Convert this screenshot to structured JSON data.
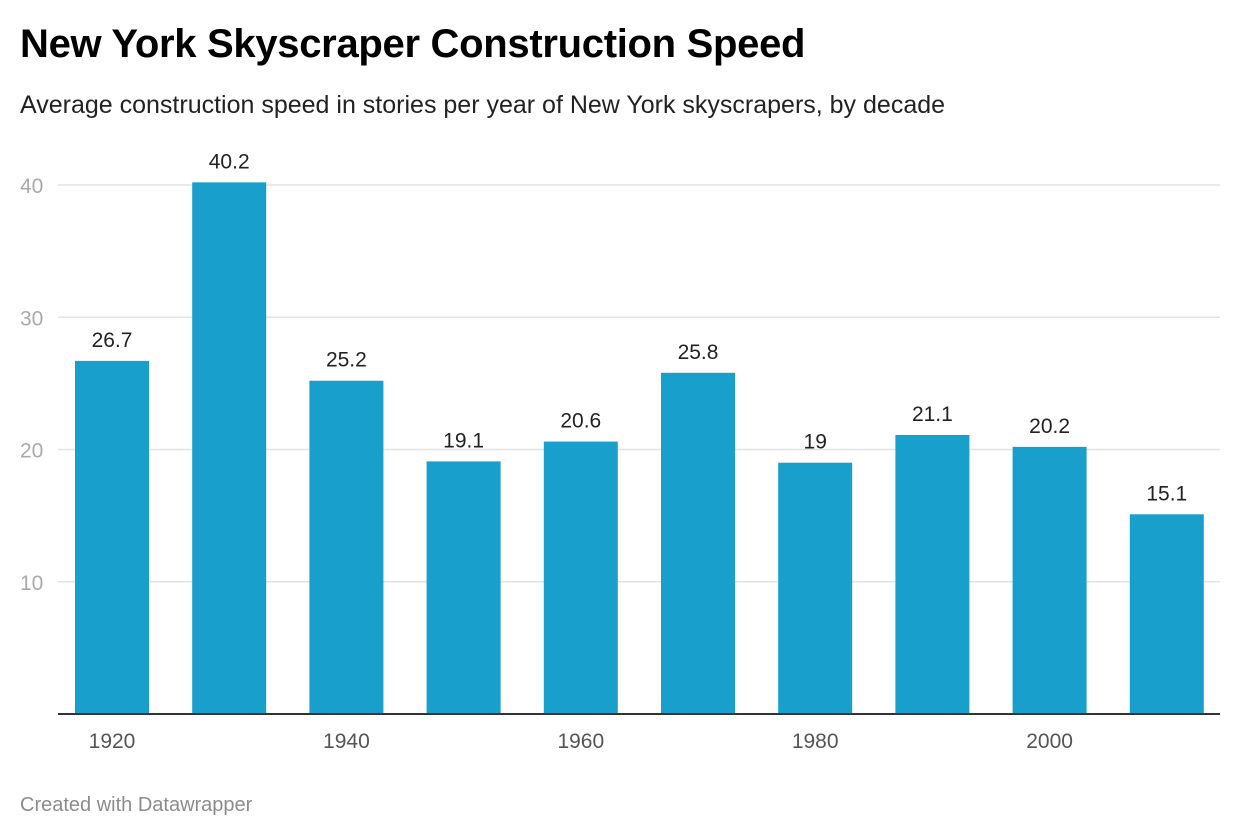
{
  "title": "New York Skyscraper Construction Speed",
  "subtitle": "Average construction speed in stories per year of New York skyscrapers, by decade",
  "footer": "Created with Datawrapper",
  "colors": {
    "bar": "#189fcc",
    "grid": "#e3e3e3",
    "axis": "#333333",
    "tick_label": "#aaaaaa",
    "x_label": "#555555",
    "value_label": "#222222"
  },
  "chart_data": {
    "type": "bar",
    "title": "New York Skyscraper Construction Speed",
    "subtitle": "Average construction speed in stories per year of New York skyscrapers, by decade",
    "xlabel": "",
    "ylabel": "",
    "categories": [
      "1920",
      "1930",
      "1940",
      "1950",
      "1960",
      "1970",
      "1980",
      "1990",
      "2000",
      "2010"
    ],
    "x_tick_labels": [
      "1920",
      "",
      "1940",
      "",
      "1960",
      "",
      "1980",
      "",
      "2000",
      ""
    ],
    "values": [
      26.7,
      40.2,
      25.2,
      19.1,
      20.6,
      25.8,
      19,
      21.1,
      20.2,
      15.1
    ],
    "value_labels": [
      "26.7",
      "40.2",
      "25.2",
      "19.1",
      "20.6",
      "25.8",
      "19",
      "21.1",
      "20.2",
      "15.1"
    ],
    "ylim": [
      0,
      40
    ],
    "yticks": [
      10,
      20,
      30,
      40
    ],
    "grid": true,
    "legend": "none"
  }
}
